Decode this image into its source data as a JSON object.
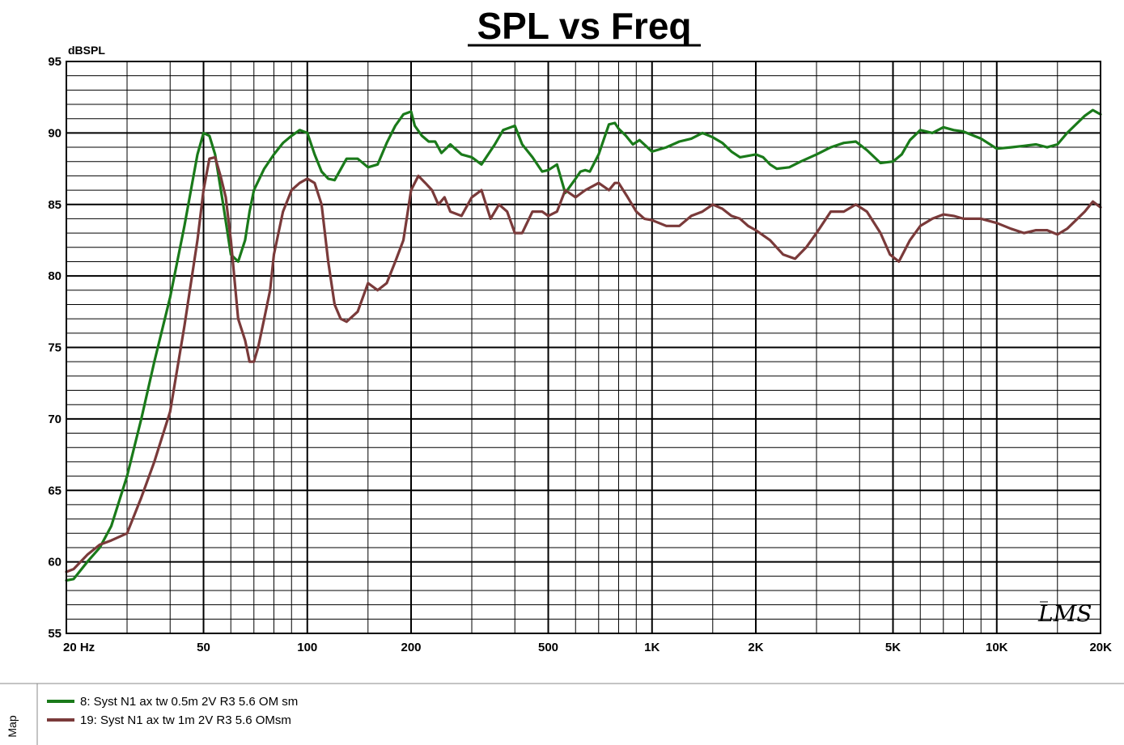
{
  "chart_data": {
    "type": "line",
    "title": "SPL vs Freq",
    "ylabel": "dBSPL",
    "xlabel": "",
    "x_scale": "log",
    "xlim": [
      20,
      20000
    ],
    "ylim": [
      55,
      95
    ],
    "grid": true,
    "y_ticks": [
      {
        "value": 55,
        "label": "55"
      },
      {
        "value": 60,
        "label": "60"
      },
      {
        "value": 65,
        "label": "65"
      },
      {
        "value": 70,
        "label": "70"
      },
      {
        "value": 75,
        "label": "75"
      },
      {
        "value": 80,
        "label": "80"
      },
      {
        "value": 85,
        "label": "85"
      },
      {
        "value": 90,
        "label": "90"
      },
      {
        "value": 95,
        "label": "95"
      }
    ],
    "x_ticks": [
      {
        "value": 20,
        "label": "20  Hz"
      },
      {
        "value": 50,
        "label": "50"
      },
      {
        "value": 100,
        "label": "100"
      },
      {
        "value": 200,
        "label": "200"
      },
      {
        "value": 500,
        "label": "500"
      },
      {
        "value": 1000,
        "label": "1K"
      },
      {
        "value": 2000,
        "label": "2K"
      },
      {
        "value": 5000,
        "label": "5K"
      },
      {
        "value": 10000,
        "label": "10K"
      },
      {
        "value": 20000,
        "label": "20K"
      }
    ],
    "legend_position": "bottom",
    "legend_side_label": "Map",
    "logo_text": "LMS",
    "series": [
      {
        "name": "8: Syst N1 ax tw 0.5m 2V R3 5.6 OM sm",
        "color": "#1a7a1a",
        "x": [
          20,
          21,
          23,
          25,
          27,
          30,
          33,
          36,
          40,
          44,
          48,
          50,
          52,
          54,
          57,
          60,
          63,
          66,
          68,
          70,
          75,
          80,
          85,
          90,
          95,
          100,
          105,
          110,
          115,
          120,
          130,
          140,
          150,
          160,
          170,
          180,
          190,
          200,
          205,
          215,
          225,
          235,
          245,
          260,
          280,
          300,
          320,
          350,
          370,
          400,
          420,
          450,
          480,
          500,
          530,
          560,
          600,
          620,
          640,
          660,
          700,
          750,
          780,
          800,
          840,
          880,
          920,
          1000,
          1100,
          1200,
          1300,
          1400,
          1500,
          1600,
          1700,
          1800,
          2000,
          2100,
          2200,
          2300,
          2500,
          2700,
          3000,
          3300,
          3600,
          3900,
          4200,
          4600,
          5000,
          5300,
          5600,
          6000,
          6500,
          7000,
          7500,
          8000,
          9000,
          10000,
          11000,
          12000,
          13000,
          14000,
          15000,
          16000,
          18000,
          19000,
          20000
        ],
        "y": [
          58.7,
          58.8,
          60,
          61,
          62.5,
          66,
          70,
          74,
          78.5,
          83.5,
          88.5,
          90,
          89.8,
          88.5,
          85,
          81.5,
          81,
          82.5,
          84.5,
          86,
          87.5,
          88.5,
          89.3,
          89.8,
          90.2,
          90,
          88.5,
          87.3,
          86.8,
          86.7,
          88.2,
          88.2,
          87.6,
          87.8,
          89.3,
          90.5,
          91.3,
          91.5,
          90.5,
          89.8,
          89.4,
          89.4,
          88.6,
          89.2,
          88.5,
          88.3,
          87.8,
          89.2,
          90.2,
          90.5,
          89.2,
          88.3,
          87.3,
          87.4,
          87.8,
          85.8,
          86.8,
          87.3,
          87.4,
          87.3,
          88.5,
          90.6,
          90.7,
          90.3,
          89.8,
          89.2,
          89.5,
          88.7,
          89,
          89.4,
          89.6,
          90,
          89.7,
          89.3,
          88.7,
          88.3,
          88.5,
          88.3,
          87.8,
          87.5,
          87.6,
          88,
          88.5,
          89,
          89.3,
          89.4,
          88.8,
          87.9,
          88,
          88.5,
          89.5,
          90.2,
          90,
          90.4,
          90.2,
          90.1,
          89.6,
          88.9,
          89,
          89.1,
          89.2,
          89,
          89.2,
          90,
          91.2,
          91.6,
          91.3
        ]
      },
      {
        "name": "19: Syst N1 ax tw 1m 2V R3 5.6 OMsm",
        "color": "#7a3a3a",
        "x": [
          20,
          21,
          23,
          25,
          27,
          30,
          33,
          36,
          40,
          44,
          48,
          50,
          52,
          54,
          56,
          58,
          60,
          63,
          66,
          68,
          70,
          72,
          75,
          78,
          80,
          85,
          90,
          95,
          100,
          105,
          110,
          115,
          120,
          125,
          130,
          140,
          150,
          160,
          170,
          180,
          190,
          200,
          210,
          220,
          230,
          240,
          250,
          260,
          280,
          300,
          320,
          340,
          360,
          380,
          400,
          420,
          450,
          480,
          500,
          530,
          560,
          600,
          640,
          700,
          750,
          780,
          800,
          850,
          900,
          950,
          1000,
          1100,
          1200,
          1300,
          1400,
          1500,
          1600,
          1700,
          1800,
          1900,
          2000,
          2200,
          2400,
          2600,
          2800,
          3000,
          3300,
          3600,
          3900,
          4200,
          4600,
          4900,
          5200,
          5600,
          6000,
          6500,
          7000,
          7500,
          8000,
          9000,
          10000,
          11000,
          12000,
          13000,
          14000,
          15000,
          16000,
          18000,
          19000,
          20000
        ],
        "y": [
          59.3,
          59.5,
          60.5,
          61.2,
          61.5,
          62,
          64.5,
          67,
          70.5,
          76.5,
          82.5,
          86,
          88.2,
          88.3,
          87,
          85.5,
          82.5,
          77,
          75.5,
          74,
          74,
          75,
          77,
          79,
          81.5,
          84.5,
          86,
          86.5,
          86.8,
          86.5,
          85,
          81,
          78,
          77,
          76.8,
          77.5,
          79.5,
          79,
          79.5,
          81,
          82.5,
          86,
          87,
          86.5,
          86,
          85,
          85.5,
          84.5,
          84.2,
          85.5,
          86,
          84,
          85,
          84.5,
          83,
          83,
          84.5,
          84.5,
          84.2,
          84.5,
          86,
          85.5,
          86,
          86.5,
          86,
          86.5,
          86.5,
          85.5,
          84.5,
          84,
          83.9,
          83.5,
          83.5,
          84.2,
          84.5,
          85,
          84.7,
          84.2,
          84,
          83.5,
          83.2,
          82.5,
          81.5,
          81.2,
          82,
          83,
          84.5,
          84.5,
          85,
          84.5,
          83,
          81.5,
          81,
          82.5,
          83.5,
          84,
          84.3,
          84.2,
          84,
          84,
          83.7,
          83.3,
          83,
          83.2,
          83.2,
          82.9,
          83.3,
          84.5,
          85.2,
          84.8
        ]
      }
    ]
  }
}
